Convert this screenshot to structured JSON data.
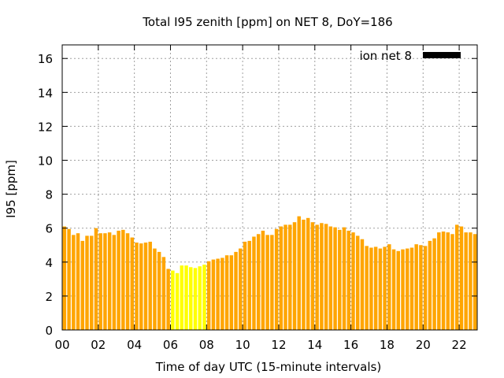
{
  "chart_data": {
    "type": "bar",
    "title": "Total I95 zenith [ppm] on NET 8, DoY=186",
    "xlabel": "Time of day UTC (15-minute intervals)",
    "ylabel": "I95 [ppm]",
    "ylim": [
      0,
      16.8
    ],
    "yticks": [
      "0",
      "2",
      "4",
      "6",
      "8",
      "10",
      "12",
      "14",
      "16"
    ],
    "xticks": [
      "00",
      "02",
      "04",
      "06",
      "08",
      "10",
      "12",
      "14",
      "16",
      "18",
      "20",
      "22"
    ],
    "grid": true,
    "legend": {
      "label": "ion net 8",
      "position": "top-right",
      "color": "#000000"
    },
    "colors": {
      "default": "#ffa500",
      "highlight": "#ffff00"
    },
    "highlight_range_hours": [
      6.0,
      8.0
    ],
    "interval_hours": 0.25,
    "series": [
      {
        "values": [
          6.1,
          5.95,
          5.6,
          5.7,
          5.25,
          5.55,
          5.55,
          6.0,
          5.7,
          5.7,
          5.75,
          5.6,
          5.85,
          5.9,
          5.7,
          5.45,
          5.15,
          5.1,
          5.15,
          5.2,
          4.8,
          4.6,
          4.3,
          3.6,
          3.5,
          3.35,
          3.8,
          3.8,
          3.7,
          3.65,
          3.75,
          3.85,
          4.05,
          4.15,
          4.2,
          4.25,
          4.4,
          4.4,
          4.6,
          4.8,
          5.2,
          5.25,
          5.5,
          5.65,
          5.85,
          5.6,
          5.6,
          5.95,
          6.1,
          6.2,
          6.2,
          6.35,
          6.7,
          6.5,
          6.6,
          6.35,
          6.2,
          6.3,
          6.25,
          6.1,
          6.05,
          5.9,
          6.05,
          5.85,
          5.75,
          5.55,
          5.35,
          4.95,
          4.85,
          4.9,
          4.8,
          4.9,
          5.05,
          4.75,
          4.65,
          4.75,
          4.8,
          4.85,
          5.05,
          5.0,
          4.95,
          5.25,
          5.4,
          5.75,
          5.8,
          5.75,
          5.65,
          6.2,
          6.1,
          5.75,
          5.75,
          5.65
        ]
      }
    ]
  }
}
